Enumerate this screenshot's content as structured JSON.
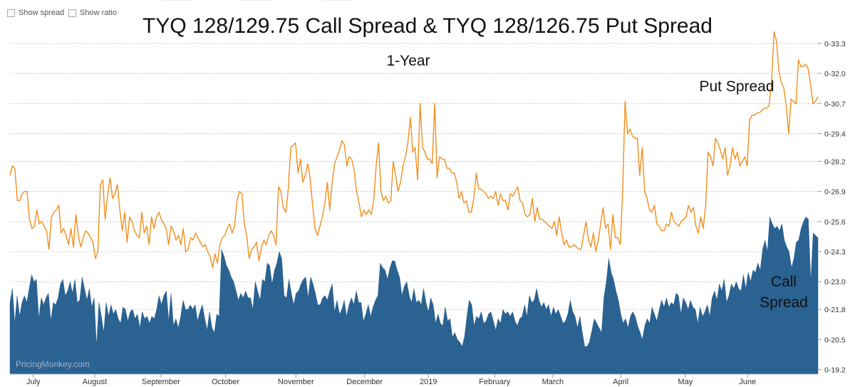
{
  "controls": {
    "show_spread": "Show spread",
    "show_ratio": "Show ratio"
  },
  "watermark": "PricingMonkey.com",
  "chart_data": {
    "type": "line",
    "title": "TYQ 128/129.75 Call Spread & TYQ 128/126.75 Put Spread",
    "subtitle": "1-Year",
    "y_ticks": [
      "0-19.2",
      "0-20.5",
      "0-21.8",
      "0-23.0",
      "0-24.3",
      "0-25.6",
      "0-26.9",
      "0-28.2",
      "0-29.4",
      "0-30.7",
      "0-32.0",
      "0-33.3"
    ],
    "y_tick_values": [
      19.2,
      20.5,
      21.8,
      23.0,
      24.3,
      25.6,
      26.9,
      28.2,
      29.4,
      30.7,
      32.0,
      33.3
    ],
    "ylim": [
      19.0,
      34.5
    ],
    "grid": true,
    "x_ticks": [
      "July",
      "August",
      "September",
      "October",
      "November",
      "December",
      "2019",
      "February",
      "March",
      "April",
      "May",
      "June"
    ],
    "x_tick_pos": [
      0.013,
      0.089,
      0.171,
      0.251,
      0.338,
      0.423,
      0.502,
      0.584,
      0.656,
      0.74,
      0.82,
      0.897
    ],
    "annotations": {
      "put": "Put Spread",
      "call_line1": "Call",
      "call_line2": "Spread"
    },
    "colors": {
      "put": "#f28e1c",
      "call": "#2a6292"
    },
    "series": [
      {
        "name": "Put Spread",
        "type": "line",
        "values": [
          27.6,
          28.0,
          27.9,
          26.5,
          26.5,
          26.8,
          26.9,
          26.9,
          25.7,
          25.3,
          25.4,
          26.1,
          25.5,
          25.6,
          25.4,
          25.2,
          24.4,
          25.8,
          26.0,
          26.1,
          26.3,
          25.1,
          25.3,
          25.0,
          24.6,
          25.3,
          24.5,
          25.9,
          25.0,
          24.5,
          24.9,
          25.2,
          25.1,
          24.9,
          24.7,
          24.0,
          24.3,
          27.2,
          27.4,
          25.7,
          26.7,
          27.5,
          26.6,
          26.8,
          27.2,
          26.1,
          25.2,
          26.0,
          24.7,
          25.8,
          25.6,
          25.2,
          25.0,
          24.9,
          26.0,
          25.1,
          25.4,
          24.6,
          25.8,
          25.3,
          25.8,
          26.0,
          25.7,
          25.5,
          25.3,
          24.6,
          25.4,
          25.2,
          24.8,
          25.0,
          24.6,
          25.3,
          24.3,
          24.4,
          24.9,
          24.8,
          25.1,
          24.9,
          24.7,
          24.5,
          24.6,
          24.3,
          24.1,
          23.6,
          24.2,
          23.8,
          24.6,
          24.9,
          25.0,
          25.3,
          25.5,
          25.1,
          25.4,
          26.5,
          26.9,
          26.8,
          25.5,
          25.0,
          24.0,
          24.4,
          24.5,
          24.7,
          23.9,
          24.5,
          24.8,
          24.6,
          25.0,
          25.2,
          25.0,
          24.6,
          27.1,
          26.9,
          26.2,
          26.0,
          27.0,
          28.8,
          28.9,
          29.0,
          27.7,
          28.3,
          27.3,
          27.6,
          28.1,
          27.4,
          26.3,
          25.3,
          25.0,
          25.4,
          25.8,
          26.4,
          27.3,
          26.1,
          27.3,
          28.1,
          28.4,
          28.7,
          29.1,
          28.9,
          28.0,
          28.4,
          28.3,
          27.8,
          26.9,
          26.4,
          25.8,
          26.1,
          25.9,
          26.1,
          25.9,
          26.5,
          28.0,
          29.0,
          26.9,
          26.5,
          26.7,
          26.4,
          26.5,
          28.2,
          27.6,
          26.9,
          27.3,
          28.0,
          28.4,
          29.0,
          30.1,
          28.6,
          28.8,
          27.4,
          30.7,
          28.8,
          28.6,
          28.3,
          28.3,
          28.1,
          30.7,
          27.5,
          28.4,
          28.3,
          28.3,
          27.9,
          27.9,
          27.7,
          27.7,
          27.3,
          26.6,
          26.9,
          26.4,
          26.5,
          26.0,
          26.0,
          26.6,
          27.7,
          27.0,
          27.0,
          26.9,
          26.8,
          26.6,
          26.7,
          26.6,
          26.9,
          26.3,
          26.8,
          26.5,
          26.5,
          26.1,
          26.8,
          26.7,
          26.9,
          27.1,
          26.5,
          26.4,
          25.9,
          25.8,
          25.9,
          26.6,
          25.6,
          26.2,
          25.7,
          25.7,
          25.6,
          25.5,
          25.4,
          25.3,
          25.6,
          25.0,
          25.8,
          25.1,
          24.6,
          24.8,
          24.5,
          24.5,
          24.6,
          24.5,
          24.4,
          24.4,
          25.0,
          25.6,
          24.8,
          24.5,
          25.1,
          24.3,
          24.8,
          25.5,
          26.2,
          25.3,
          25.5,
          24.4,
          25.9,
          24.9,
          24.9,
          24.6,
          26.9,
          30.8,
          29.4,
          29.6,
          29.3,
          29.2,
          29.2,
          27.6,
          28.8,
          26.9,
          26.6,
          26.1,
          26.0,
          26.3,
          25.5,
          25.4,
          25.2,
          25.2,
          25.5,
          25.4,
          26.0,
          25.6,
          25.5,
          25.4,
          25.6,
          25.7,
          25.8,
          26.3,
          26.0,
          26.2,
          25.4,
          25.1,
          25.8,
          25.3,
          26.3,
          28.6,
          28.4,
          28.0,
          29.2,
          29.0,
          28.7,
          28.3,
          28.8,
          27.6,
          28.0,
          28.8,
          28.3,
          28.6,
          28.0,
          28.2,
          28.4,
          28.0,
          30.0,
          30.2,
          30.2,
          30.3,
          30.3,
          30.4,
          30.5,
          30.5,
          30.6,
          31.6,
          33.8,
          33.4,
          32.1,
          31.6,
          31.4,
          30.6,
          29.4,
          30.9,
          30.8,
          30.7,
          32.6,
          32.3,
          32.3,
          32.4,
          32.2,
          31.5,
          30.7,
          30.8,
          31.0
        ]
      },
      {
        "name": "Call Spread",
        "type": "area",
        "values": [
          22.1,
          22.7,
          21.2,
          22.4,
          21.5,
          22.1,
          22.4,
          22.1,
          22.7,
          23.3,
          23.0,
          23.1,
          21.4,
          22.3,
          22.0,
          22.3,
          22.5,
          21.3,
          22.1,
          22.0,
          22.3,
          22.9,
          23.1,
          22.4,
          22.6,
          23.0,
          22.5,
          23.1,
          22.1,
          22.2,
          23.2,
          22.7,
          22.2,
          22.7,
          21.9,
          22.3,
          20.2,
          22.1,
          21.5,
          20.8,
          22.1,
          21.5,
          22.0,
          21.6,
          21.8,
          21.4,
          21.2,
          21.9,
          21.8,
          21.3,
          21.7,
          21.8,
          21.4,
          21.6,
          21.0,
          21.7,
          21.4,
          21.5,
          21.2,
          21.5,
          21.4,
          21.8,
          22.4,
          22.0,
          22.4,
          22.6,
          21.3,
          22.5,
          21.1,
          21.4,
          21.0,
          21.5,
          22.2,
          21.8,
          21.8,
          22.0,
          21.8,
          22.0,
          21.3,
          21.7,
          22.0,
          21.4,
          20.9,
          21.7,
          21.0,
          20.8,
          21.6,
          21.5,
          24.4,
          24.1,
          23.7,
          23.5,
          23.2,
          23.0,
          22.6,
          22.2,
          22.5,
          22.3,
          22.6,
          22.3,
          22.3,
          21.8,
          23.0,
          22.6,
          22.2,
          23.1,
          23.0,
          23.8,
          23.7,
          22.9,
          23.5,
          23.8,
          24.3,
          24.0,
          22.4,
          22.3,
          23.1,
          22.5,
          22.0,
          22.5,
          22.6,
          22.9,
          23.1,
          23.2,
          22.3,
          23.2,
          22.9,
          22.5,
          22.0,
          22.0,
          22.3,
          22.4,
          22.2,
          22.6,
          22.9,
          21.7,
          22.2,
          21.6,
          21.8,
          22.2,
          21.5,
          22.0,
          22.3,
          22.0,
          22.6,
          22.1,
          22.1,
          21.3,
          21.6,
          22.0,
          21.5,
          21.9,
          22.2,
          22.4,
          23.8,
          23.6,
          23.5,
          23.1,
          23.6,
          23.9,
          23.9,
          23.5,
          23.2,
          22.4,
          22.8,
          23.0,
          22.4,
          22.1,
          22.7,
          22.1,
          22.2,
          22.0,
          22.7,
          22.1,
          21.7,
          22.3,
          22.0,
          21.2,
          21.6,
          21.2,
          21.1,
          21.9,
          21.3,
          21.4,
          20.6,
          20.8,
          20.5,
          20.4,
          20.2,
          20.6,
          21.5,
          22.2,
          22.0,
          21.1,
          21.5,
          21.4,
          21.7,
          21.2,
          21.3,
          21.6,
          21.7,
          21.3,
          20.9,
          21.4,
          21.2,
          21.8,
          21.6,
          21.7,
          21.5,
          21.7,
          21.3,
          21.1,
          21.4,
          21.5,
          22.0,
          21.5,
          22.4,
          22.1,
          22.2,
          22.7,
          22.2,
          21.9,
          22.1,
          21.8,
          22.0,
          21.5,
          21.9,
          21.6,
          21.8,
          21.5,
          21.2,
          21.3,
          21.6,
          22.2,
          21.7,
          21.5,
          21.0,
          21.5,
          20.8,
          20.2,
          20.2,
          20.4,
          20.9,
          21.4,
          21.2,
          21.0,
          20.8,
          22.3,
          23.0,
          24.0,
          23.4,
          23.1,
          22.6,
          22.2,
          21.6,
          21.2,
          21.4,
          21.0,
          21.5,
          21.7,
          21.5,
          21.1,
          20.8,
          20.5,
          21.1,
          21.4,
          21.2,
          21.9,
          21.6,
          21.3,
          21.8,
          22.2,
          21.9,
          22.3,
          21.9,
          22.1,
          22.0,
          22.5,
          22.4,
          21.6,
          22.3,
          22.1,
          21.8,
          22.2,
          21.9,
          21.8,
          21.2,
          21.9,
          21.5,
          21.7,
          22.0,
          21.5,
          22.3,
          22.6,
          22.2,
          22.9,
          22.6,
          23.1,
          22.1,
          22.4,
          22.9,
          22.7,
          23.0,
          22.7,
          22.6,
          23.3,
          22.7,
          23.4,
          23.0,
          23.5,
          23.4,
          23.8,
          23.5,
          24.4,
          24.8,
          24.3,
          25.8,
          25.5,
          25.3,
          25.4,
          25.2,
          25.5,
          24.8,
          24.5,
          24.3,
          23.6,
          24.0,
          24.7,
          24.8,
          25.3,
          25.6,
          25.8,
          25.7,
          23.0,
          25.1,
          25.0,
          24.9
        ]
      }
    ]
  }
}
